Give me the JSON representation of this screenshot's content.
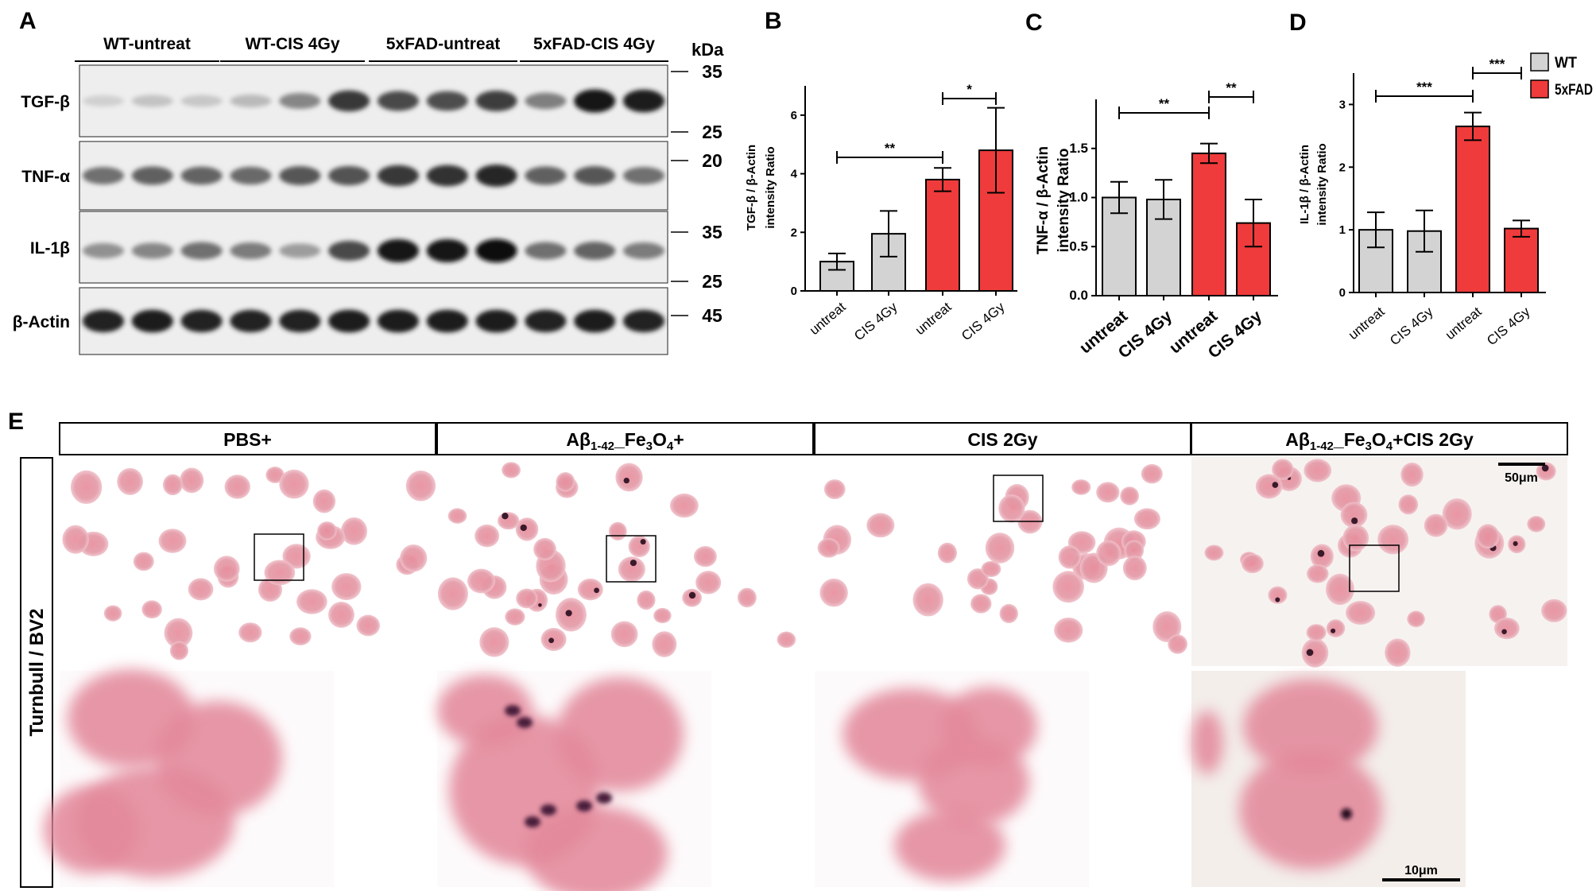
{
  "panel_letters": {
    "a": "A",
    "b": "B",
    "c": "C",
    "d": "D",
    "e": "E"
  },
  "western_blot": {
    "groups": [
      "WT-untreat",
      "WT-CIS 4Gy",
      "5xFAD-untreat",
      "5xFAD-CIS 4Gy"
    ],
    "unit_label": "kDa",
    "rows": [
      {
        "label": "TGF-β",
        "mw_markers": [
          "35",
          "25"
        ],
        "band_intensity": [
          0.12,
          0.18,
          0.16,
          0.22,
          0.45,
          0.8,
          0.72,
          0.7,
          0.78,
          0.48,
          0.95,
          0.92
        ]
      },
      {
        "label": "TNF-α",
        "mw_markers": [
          "20"
        ],
        "band_intensity": [
          0.55,
          0.62,
          0.6,
          0.58,
          0.66,
          0.68,
          0.8,
          0.82,
          0.88,
          0.62,
          0.66,
          0.55
        ]
      },
      {
        "label": "IL-1β",
        "mw_markers": [
          "35",
          "25"
        ],
        "band_intensity": [
          0.4,
          0.45,
          0.55,
          0.5,
          0.35,
          0.72,
          0.95,
          0.95,
          0.97,
          0.55,
          0.6,
          0.5
        ]
      },
      {
        "label": "β-Actin",
        "mw_markers": [
          "45"
        ],
        "band_intensity": [
          0.9,
          0.92,
          0.9,
          0.9,
          0.9,
          0.92,
          0.92,
          0.92,
          0.92,
          0.9,
          0.92,
          0.9
        ]
      }
    ]
  },
  "legend": [
    {
      "name": "WT",
      "color": "#d3d3d3"
    },
    {
      "name": "5xFAD",
      "color": "#ef3b3b"
    }
  ],
  "chart_data": [
    {
      "panel": "B",
      "type": "bar",
      "categories": [
        "untreat",
        "CIS 4Gy",
        "untreat",
        "CIS 4Gy"
      ],
      "group_of_bar": [
        "WT",
        "WT",
        "5xFAD",
        "5xFAD"
      ],
      "values": [
        1.0,
        1.95,
        3.8,
        4.8
      ],
      "errors": [
        0.28,
        0.78,
        0.4,
        1.45
      ],
      "ylabel_line1": "TGF-β / β-Actin",
      "ylabel_line2": "intensity Ratio",
      "ylim": [
        0,
        7
      ],
      "yticks": [
        0,
        2,
        4,
        6
      ],
      "significance": [
        {
          "from": 0,
          "to": 2,
          "label": "**"
        },
        {
          "from": 2,
          "to": 3,
          "label": "*"
        }
      ]
    },
    {
      "panel": "C",
      "type": "bar",
      "categories": [
        "untreat",
        "CIS 4Gy",
        "untreat",
        "CIS 4Gy"
      ],
      "group_of_bar": [
        "WT",
        "WT",
        "5xFAD",
        "5xFAD"
      ],
      "values": [
        1.0,
        0.98,
        1.45,
        0.74
      ],
      "errors": [
        0.16,
        0.2,
        0.1,
        0.24
      ],
      "ylabel_line1": "TNF-α / β-Actin",
      "ylabel_line2": "intensity Ratio",
      "ylim": [
        0,
        2.0
      ],
      "yticks": [
        0.0,
        0.5,
        1.0,
        1.5
      ],
      "ytick_labels": [
        "0.0",
        "0.5",
        "1.0",
        "1.5"
      ],
      "significance": [
        {
          "from": 0,
          "to": 2,
          "label": "**"
        },
        {
          "from": 2,
          "to": 3,
          "label": "**"
        }
      ]
    },
    {
      "panel": "D",
      "type": "bar",
      "categories": [
        "untreat",
        "CIS 4Gy",
        "untreat",
        "CIS 4Gy"
      ],
      "group_of_bar": [
        "WT",
        "WT",
        "5xFAD",
        "5xFAD"
      ],
      "values": [
        1.0,
        0.98,
        2.65,
        1.02
      ],
      "errors": [
        0.28,
        0.33,
        0.22,
        0.13
      ],
      "ylabel_line1": "IL-1β / β-Actin",
      "ylabel_line2": "intensity Ratio",
      "ylim": [
        0,
        3.5
      ],
      "yticks": [
        0,
        1,
        2,
        3
      ],
      "significance": [
        {
          "from": 0,
          "to": 2,
          "label": "***"
        },
        {
          "from": 2,
          "to": 3,
          "label": "***"
        }
      ]
    }
  ],
  "microscopy": {
    "side_label": "Turnbull / BV2",
    "panels": [
      {
        "title_parts": [
          "PBS+"
        ]
      },
      {
        "title_parts": [
          "Aβ",
          "1-42",
          "_Fe",
          "3",
          "O",
          "4",
          "+"
        ]
      },
      {
        "title_parts": [
          "CIS 2Gy"
        ]
      },
      {
        "title_parts": [
          "Aβ",
          "1-42",
          "_Fe",
          "3",
          "O",
          "4",
          "+CIS 2Gy"
        ]
      }
    ],
    "scale_bar_top": "50μm",
    "scale_bar_bottom": "10μm"
  }
}
